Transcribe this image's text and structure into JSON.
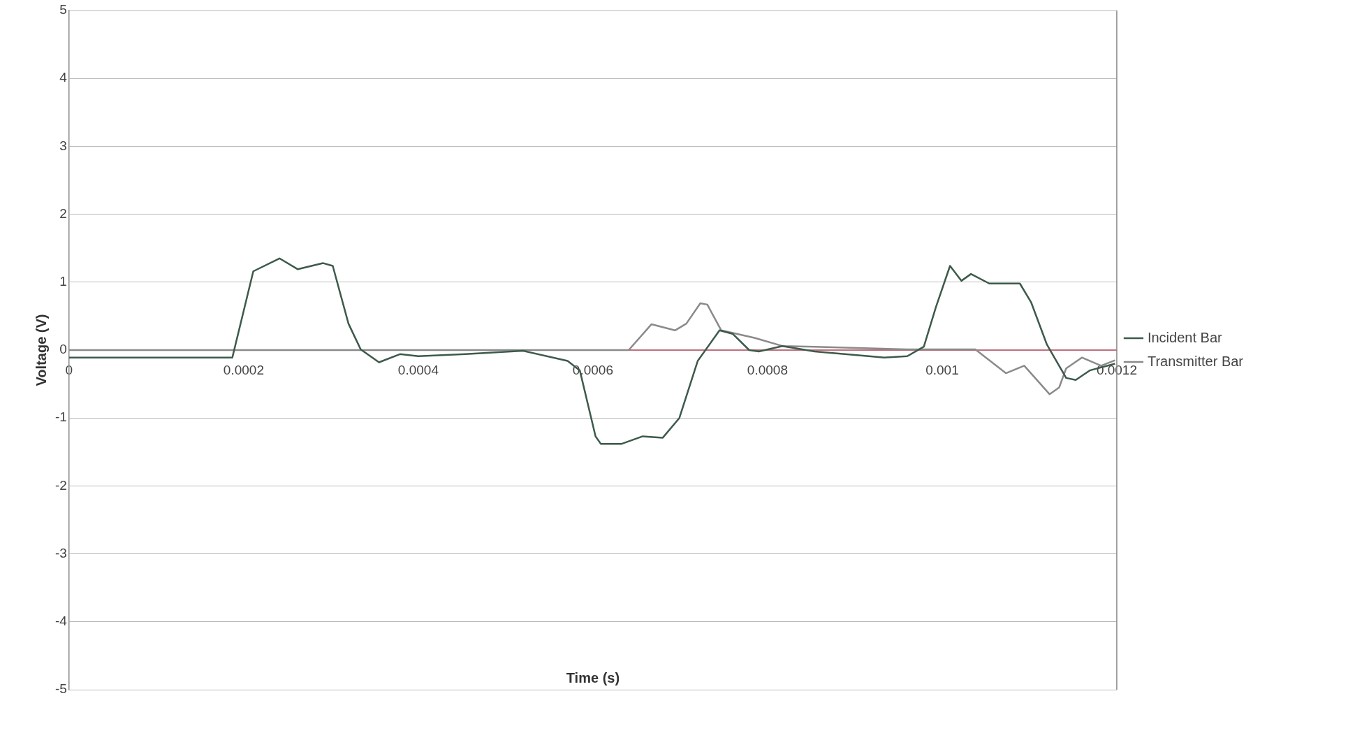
{
  "chart_data": {
    "type": "line",
    "xlabel": "Time (s)",
    "ylabel": "Voltage (V)",
    "xlim": [
      0,
      0.0012
    ],
    "xticks": [
      0,
      0.0002,
      0.0004,
      0.0006,
      0.0008,
      0.001,
      0.0012
    ],
    "ylim": [
      -5,
      5
    ],
    "yticks": [
      -5,
      -4,
      -3,
      -2,
      -1,
      0,
      1,
      2,
      3,
      4,
      5
    ],
    "grid": "y",
    "legend": "right",
    "series": [
      {
        "name": "Incident Bar",
        "color": "#3d5a4a",
        "x": [
          0,
          0.000187,
          0.000211,
          0.000241,
          0.000262,
          0.000291,
          0.000302,
          0.00032,
          0.000334,
          0.000355,
          0.000379,
          0.0004,
          0.000454,
          0.00052,
          0.000571,
          0.000585,
          0.000603,
          0.000609,
          0.000633,
          0.000657,
          0.00068,
          0.000699,
          0.00072,
          0.000745,
          0.00076,
          0.000779,
          0.00079,
          0.000817,
          0.000854,
          0.000934,
          0.00096,
          0.000979,
          0.000993,
          0.001009,
          0.001022,
          0.001033,
          0.001054,
          0.001089,
          0.001102,
          0.00112,
          0.001142,
          0.001153,
          0.001169,
          0.001198
        ],
        "values": [
          -0.11,
          -0.11,
          1.16,
          1.35,
          1.19,
          1.28,
          1.24,
          0.39,
          0.01,
          -0.18,
          -0.06,
          -0.09,
          -0.06,
          -0.01,
          -0.16,
          -0.3,
          -1.27,
          -1.38,
          -1.38,
          -1.27,
          -1.29,
          -1.0,
          -0.16,
          0.29,
          0.24,
          0,
          -0.02,
          0.06,
          -0.02,
          -0.11,
          -0.09,
          0.05,
          0.64,
          1.24,
          1.02,
          1.12,
          0.98,
          0.98,
          0.7,
          0.08,
          -0.41,
          -0.44,
          -0.3,
          -0.2
        ]
      },
      {
        "name": "Transmitter Bar",
        "color": "#8a8a8a",
        "x": [
          0,
          0.000641,
          0.000667,
          0.000694,
          0.000707,
          0.000723,
          0.000731,
          0.000747,
          0.000785,
          0.000817,
          0.000854,
          0.00096,
          0.001038,
          0.001073,
          0.001094,
          0.001123,
          0.001134,
          0.001142,
          0.00116,
          0.001182,
          0.001198
        ],
        "values": [
          0,
          0,
          0.38,
          0.29,
          0.39,
          0.69,
          0.67,
          0.29,
          0.18,
          0.06,
          0.05,
          0.01,
          0.01,
          -0.34,
          -0.23,
          -0.65,
          -0.55,
          -0.27,
          -0.11,
          -0.23,
          -0.15
        ]
      }
    ]
  }
}
